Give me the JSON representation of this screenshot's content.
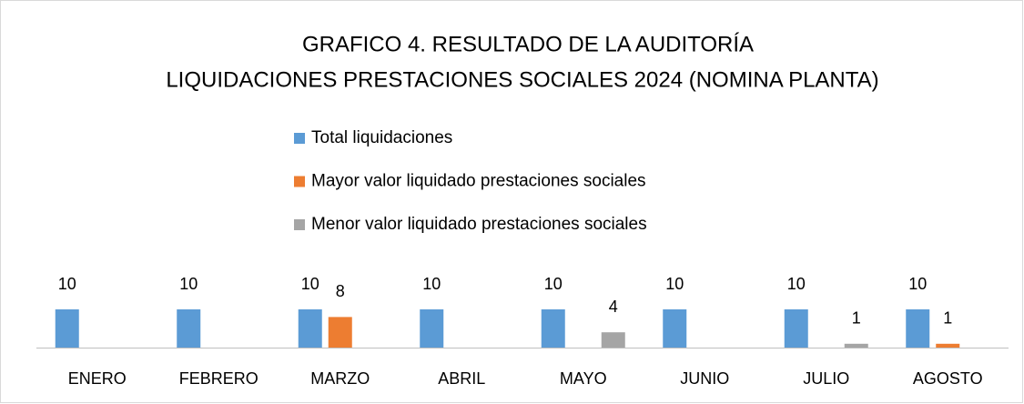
{
  "chart_data": {
    "type": "bar",
    "title": "GRAFICO 4. RESULTADO DE LA AUDITORÍA",
    "subtitle": "LIQUIDACIONES PRESTACIONES SOCIALES 2024 (NOMINA PLANTA)",
    "categories": [
      "ENERO",
      "FEBRERO",
      "MARZO",
      "ABRIL",
      "MAYO",
      "JUNIO",
      "JULIO",
      "AGOSTO"
    ],
    "series": [
      {
        "name": "Total liquidaciones",
        "color": "#5b9bd5",
        "values": [
          10,
          10,
          10,
          10,
          10,
          10,
          10,
          10
        ]
      },
      {
        "name": "Mayor valor liquidado prestaciones sociales",
        "color": "#ed7d31",
        "values": [
          null,
          null,
          8,
          null,
          null,
          null,
          null,
          1
        ]
      },
      {
        "name": "Menor valor liquidado prestaciones sociales",
        "color": "#a5a5a5",
        "values": [
          null,
          null,
          null,
          null,
          4,
          null,
          1,
          null
        ]
      }
    ],
    "legend": "top"
  }
}
